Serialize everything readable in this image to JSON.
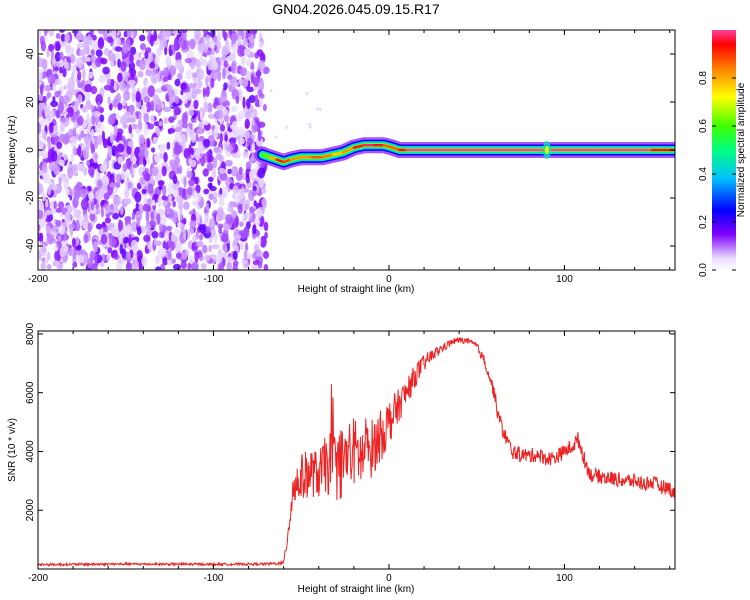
{
  "title": "GN04.2026.045.09.15.R17",
  "chart_data": [
    {
      "type": "heatmap",
      "xlabel": "Height of straight line (km)",
      "ylabel": "Frequency (Hz)",
      "xlim": [
        -200,
        163
      ],
      "ylim": [
        -50,
        50
      ],
      "xticks": [
        "-200",
        "-100",
        "0",
        "100"
      ],
      "yticks": [
        "-40",
        "-20",
        "0",
        "20",
        "40"
      ],
      "colorbar": {
        "label": "Normalized spectral amplitude",
        "range": [
          0.0,
          1.0
        ],
        "ticks": [
          "0.0",
          "0.2",
          "0.4",
          "0.6",
          "0.8"
        ],
        "colors": [
          "#ffffff",
          "#e8d8ff",
          "#8000ff",
          "#0000ff",
          "#00c0ff",
          "#00ff80",
          "#40ff00",
          "#ffff00",
          "#ff8000",
          "#ff0000",
          "#ff40a0"
        ]
      },
      "noise_region_x": [
        -200,
        -70
      ],
      "signal_track": {
        "x": [
          -72,
          -68,
          -64,
          -60,
          -56,
          -50,
          -44,
          -38,
          -32,
          -26,
          -20,
          -14,
          -8,
          -3,
          2,
          6,
          10,
          30,
          60,
          90,
          120,
          150,
          163
        ],
        "y": [
          -2,
          -3,
          -4,
          -5,
          -4,
          -3,
          -3,
          -3,
          -2,
          -1,
          1,
          2,
          2,
          2,
          1,
          0,
          0,
          0,
          0,
          0,
          0,
          0,
          0
        ],
        "amplitude": [
          0.5,
          0.7,
          0.9,
          0.95,
          0.85,
          0.8,
          0.85,
          0.9,
          0.8,
          0.75,
          0.9,
          0.95,
          1.0,
          0.9,
          0.85,
          0.9,
          1.0,
          1.0,
          1.0,
          1.0,
          1.0,
          1.0,
          0.9
        ]
      }
    },
    {
      "type": "line",
      "xlabel": "Height of straight line (km)",
      "ylabel": "SNR (10 * v/v)",
      "xlim": [
        -200,
        163
      ],
      "ylim": [
        0,
        8100
      ],
      "xticks": [
        "-200",
        "-100",
        "0",
        "100"
      ],
      "yticks": [
        "2000",
        "4000",
        "6000",
        "8000"
      ],
      "color": "#ee2222",
      "series": [
        {
          "x": [
            -200,
            -150,
            -100,
            -70,
            -60,
            -57,
            -55,
            -50,
            -45,
            -40,
            -35,
            -30,
            -25,
            -20,
            -15,
            -10,
            -5,
            0,
            5,
            10,
            15,
            20,
            25,
            30,
            35,
            40,
            45,
            50,
            55,
            60,
            62,
            65,
            70,
            75,
            80,
            85,
            90,
            95,
            100,
            105,
            108,
            112,
            115,
            120,
            125,
            130,
            135,
            140,
            145,
            150,
            155,
            160,
            163
          ],
          "y": [
            150,
            170,
            160,
            170,
            200,
            1500,
            2700,
            3100,
            3300,
            3200,
            3600,
            3500,
            3700,
            4000,
            3800,
            4100,
            4500,
            5000,
            5500,
            6000,
            6600,
            7000,
            7300,
            7500,
            7700,
            7800,
            7750,
            7600,
            7000,
            6000,
            5300,
            4700,
            4000,
            3900,
            3850,
            3900,
            3750,
            3800,
            4000,
            4200,
            4400,
            3600,
            3200,
            3150,
            3100,
            3050,
            3000,
            3000,
            2900,
            2950,
            2800,
            2750,
            2500
          ],
          "noise": [
            40,
            40,
            40,
            40,
            60,
            500,
            700,
            800,
            850,
            800,
            1100,
            1200,
            1300,
            1200,
            1100,
            1000,
            900,
            800,
            600,
            500,
            400,
            300,
            200,
            150,
            120,
            100,
            100,
            120,
            200,
            250,
            250,
            250,
            250,
            250,
            250,
            250,
            250,
            250,
            250,
            250,
            300,
            250,
            250,
            250,
            250,
            250,
            250,
            250,
            250,
            250,
            250,
            250,
            250
          ]
        }
      ]
    }
  ]
}
